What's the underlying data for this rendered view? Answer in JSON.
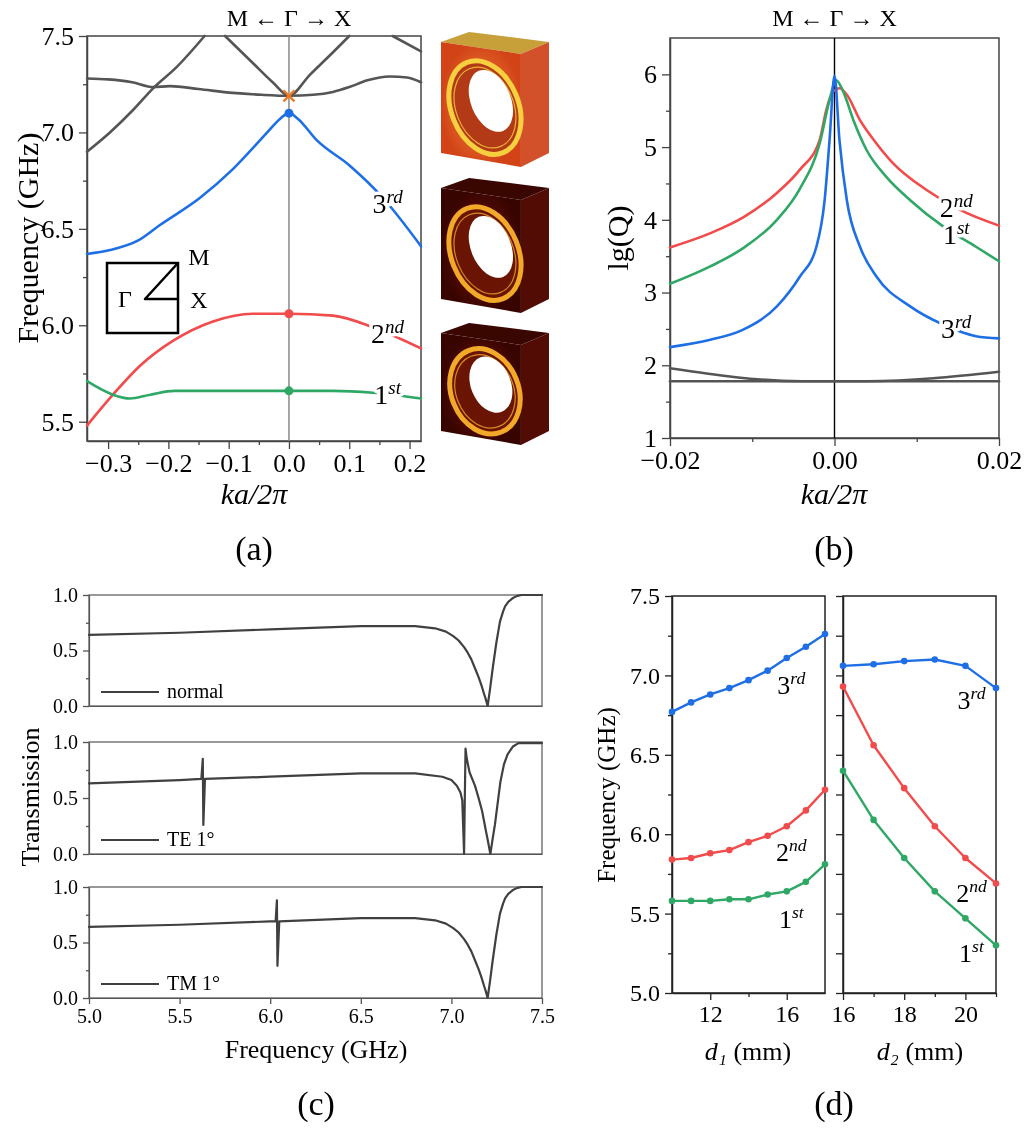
{
  "chart_data": [
    {
      "type": "line",
      "title": "M ← Γ → X",
      "xlabel": "ka/2π",
      "ylabel": "Frequency (GHz)",
      "xlim": [
        -0.335,
        0.219
      ],
      "ylim": [
        5.4,
        7.5
      ],
      "xticks": [
        {
          "value": -0.3,
          "label": "−0.3"
        },
        {
          "value": -0.25,
          "label": null
        },
        {
          "value": -0.2,
          "label": "−0.2"
        },
        {
          "value": -0.15,
          "label": null
        },
        {
          "value": -0.1,
          "label": "−0.1"
        },
        {
          "value": -0.05,
          "label": null
        },
        {
          "value": 0,
          "label": "0.0"
        },
        {
          "value": 0.05,
          "label": null
        },
        0.1,
        {
          "value": 0.15,
          "label": null
        },
        0.2
      ],
      "yticks": [
        5.5,
        {
          "value": 5.75,
          "label": null
        },
        {
          "value": 6,
          "label": "6.0"
        },
        {
          "value": 6.25,
          "label": null
        },
        6.5,
        {
          "value": 6.75,
          "label": null
        },
        {
          "value": 7,
          "label": "7.0"
        },
        {
          "value": 7.25,
          "label": null
        },
        7.5
      ],
      "ref_lines": [
        {
          "axis": "x",
          "value": 0,
          "color": "#808080"
        }
      ],
      "series": [
        {
          "color": "#555555",
          "x": [
            -0.335,
            -0.3,
            -0.26,
            -0.225,
            -0.197,
            -0.15,
            -0.093,
            -0.045,
            0,
            0.04,
            0.073,
            0.1,
            0.13,
            0.167,
            0.196,
            0.219
          ],
          "values": [
            7.28,
            7.275,
            7.26,
            7.235,
            7.24,
            7.225,
            7.205,
            7.195,
            7.19,
            7.195,
            7.21,
            7.235,
            7.27,
            7.29,
            7.285,
            7.26
          ]
        },
        {
          "color": "#555555",
          "x": [
            -0.335,
            -0.297,
            -0.259,
            -0.225,
            -0.186,
            -0.14,
            -0.123,
            -0.106,
            -0.06,
            -0.027,
            0,
            0.035,
            0.068,
            0.1,
            0.136,
            0.172,
            0.219
          ],
          "values": [
            6.9,
            7.0,
            7.115,
            7.23,
            7.34,
            7.5,
            null,
            7.5,
            7.36,
            7.26,
            7.19,
            7.3,
            7.4,
            7.5,
            null,
            7.5,
            7.42
          ]
        },
        {
          "name": "3$^{rd}$",
          "color": "#1e6fe6",
          "x": [
            -0.335,
            -0.297,
            -0.25,
            -0.214,
            -0.148,
            -0.093,
            -0.036,
            -0.015,
            0,
            0.015,
            0.046,
            0.1,
            0.156,
            0.219
          ],
          "values": [
            6.37,
            6.39,
            6.44,
            6.52,
            6.66,
            6.81,
            7.0,
            7.07,
            7.1,
            7.07,
            6.96,
            6.83,
            6.66,
            6.41
          ]
        },
        {
          "name": "2$^{nd}$",
          "color": "#f24b4b",
          "x": [
            -0.335,
            -0.292,
            -0.247,
            -0.192,
            -0.126,
            -0.06,
            0,
            0.073,
            0.139,
            0.219
          ],
          "values": [
            5.48,
            5.64,
            5.79,
            5.92,
            6.02,
            6.06,
            6.06,
            6.05,
            5.99,
            5.88
          ]
        },
        {
          "name": "1$^{st}$",
          "color": "#2fa866",
          "x": [
            -0.335,
            -0.292,
            -0.264,
            -0.23,
            -0.19,
            -0.1,
            0,
            0.073,
            0.139,
            0.219
          ],
          "values": [
            5.71,
            5.64,
            5.62,
            5.64,
            5.66,
            5.66,
            5.66,
            5.66,
            5.65,
            5.62
          ]
        },
        {
          "type": "scatter",
          "color": "#1e6fe6",
          "marker": "circle",
          "x": [
            0
          ],
          "values": [
            7.1
          ]
        },
        {
          "type": "scatter",
          "color": "#f24b4b",
          "marker": "circle",
          "x": [
            0
          ],
          "values": [
            6.06
          ]
        },
        {
          "type": "scatter",
          "color": "#2fa866",
          "marker": "circle",
          "x": [
            0
          ],
          "values": [
            5.66
          ]
        },
        {
          "type": "scatter",
          "color": "#f07820",
          "marker": "cross",
          "x": [
            0
          ],
          "values": [
            7.19
          ]
        }
      ],
      "annotations": [
        "Γ",
        "M",
        "X",
        "(a)"
      ]
    },
    {
      "type": "line",
      "title": "M ← Γ → X",
      "xlabel": "ka/2π",
      "ylabel": "lg(Q)",
      "xlim": [
        -0.02,
        0.02
      ],
      "ylim": [
        1,
        6.5
      ],
      "xticks": [
        {
          "value": -0.02,
          "label": "−0.02"
        },
        {
          "value": -0.01,
          "label": null
        },
        {
          "value": 0,
          "label": "0.00"
        },
        {
          "value": 0.01,
          "label": null
        },
        {
          "value": 0.02,
          "label": "0.02"
        }
      ],
      "yticks": [
        1,
        {
          "value": 1.5,
          "label": null
        },
        2,
        {
          "value": 2.5,
          "label": null
        },
        3,
        {
          "value": 3.5,
          "label": null
        },
        4,
        {
          "value": 4.5,
          "label": null
        },
        5,
        {
          "value": 5.5,
          "label": null
        },
        6
      ],
      "ref_lines": [
        {
          "axis": "x",
          "value": 0,
          "color": "#000000"
        }
      ],
      "series": [
        {
          "color": "#555555",
          "x": [
            -0.02,
            0.02
          ],
          "values": [
            1.78,
            1.78
          ]
        },
        {
          "color": "#555555",
          "x": [
            -0.02,
            -0.004,
            0.004,
            0.02
          ],
          "values": [
            1.96,
            1.78,
            1.78,
            1.91
          ]
        },
        {
          "name": "2$^{nd}$",
          "color": "#f24b4b",
          "x": [
            -0.02,
            -0.015,
            -0.011,
            -0.007,
            -0.0042,
            -0.0018,
            -0.001,
            -0.0002,
            0.0006,
            0.0015,
            0.0031,
            0.0051,
            0.0071,
            0.0112,
            0.0152,
            0.02
          ],
          "values": [
            3.62,
            3.82,
            4.04,
            4.37,
            4.69,
            5.1,
            5.51,
            5.76,
            5.81,
            5.72,
            5.37,
            5.05,
            4.78,
            4.41,
            4.14,
            3.92
          ]
        },
        {
          "name": "1$^{st}$",
          "color": "#2fa866",
          "x": [
            -0.02,
            -0.0151,
            -0.0111,
            -0.007,
            -0.0042,
            -0.0018,
            -0.0006,
            0.0002,
            0.001,
            0.0023,
            0.0039,
            0.0063,
            0.0092,
            0.0132,
            0.0172,
            0.02
          ],
          "values": [
            3.12,
            3.36,
            3.61,
            4.0,
            4.43,
            5.05,
            5.65,
            5.92,
            5.78,
            5.37,
            4.96,
            4.59,
            4.27,
            3.91,
            3.63,
            3.43
          ]
        },
        {
          "name": "3$^{rd}$",
          "color": "#1e6fe6",
          "x": [
            -0.02,
            -0.0151,
            -0.0111,
            -0.007,
            -0.0042,
            -0.0022,
            -0.0012,
            -0.0006,
            0,
            0.0006,
            0.0015,
            0.0031,
            0.0051,
            0.0092,
            0.0132,
            0.0172,
            0.02
          ],
          "values": [
            2.25,
            2.35,
            2.49,
            2.81,
            3.22,
            3.63,
            4.27,
            5.1,
            5.98,
            5.1,
            4.27,
            3.63,
            3.22,
            2.81,
            2.56,
            2.4,
            2.37
          ]
        }
      ],
      "annotations": [
        "(b)"
      ]
    },
    {
      "type": "line",
      "xlim": [
        5,
        7.5
      ],
      "ylim": [
        0,
        1
      ],
      "tick_labels": "y",
      "legend": "bottom left",
      "yticks": [
        {
          "value": 0,
          "label": "0.0"
        },
        {
          "value": 0.25,
          "label": null
        },
        0.5,
        {
          "value": 0.75,
          "label": null
        },
        {
          "value": 1,
          "label": "1.0"
        }
      ],
      "series": [
        {
          "name": "normal",
          "color": "#404040",
          "x": [
            5.0,
            5.5,
            6.0,
            6.5,
            6.8,
            6.91,
            6.97,
            7.01,
            7.04,
            7.07,
            7.09,
            7.11,
            7.13,
            7.15,
            7.165,
            7.18,
            7.19,
            7.2,
            7.213,
            7.228,
            7.248,
            7.268,
            7.285,
            7.297,
            7.315,
            7.337,
            7.36,
            7.386,
            7.5
          ],
          "values": [
            0.64,
            0.66,
            0.69,
            0.72,
            0.72,
            0.7,
            0.67,
            0.63,
            0.59,
            0.53,
            0.48,
            0.42,
            0.34,
            0.26,
            0.19,
            0.11,
            0.06,
            0.0,
            0.15,
            0.34,
            0.57,
            0.76,
            0.85,
            0.9,
            0.94,
            0.97,
            0.99,
            1.0,
            1.0
          ]
        }
      ]
    },
    {
      "type": "line",
      "ylabel": "Transmission",
      "xlim": [
        5,
        7.5
      ],
      "ylim": [
        0,
        1
      ],
      "tick_labels": "y",
      "legend": "bottom left",
      "yticks": [
        {
          "value": 0,
          "label": "0.0"
        },
        {
          "value": 0.25,
          "label": null
        },
        0.5,
        {
          "value": 0.75,
          "label": null
        },
        {
          "value": 1,
          "label": "1.0"
        }
      ],
      "series": [
        {
          "name": "TE 1°",
          "color": "#404040",
          "x": [
            5.0,
            5.5,
            5.62,
            5.628,
            5.631,
            5.64,
            6.0,
            6.5,
            6.8,
            6.95,
            7.0,
            7.03,
            7.05,
            7.06,
            7.07,
            7.074,
            7.078,
            7.085,
            7.1,
            7.13,
            7.15,
            7.17,
            7.19,
            7.2,
            7.215,
            7.228,
            7.24,
            7.255,
            7.27,
            7.29,
            7.31,
            7.34,
            7.37,
            7.5
          ],
          "values": [
            0.63,
            0.66,
            0.67,
            0.85,
            0.26,
            0.67,
            0.69,
            0.72,
            0.72,
            0.69,
            0.66,
            0.61,
            0.55,
            0.48,
            0.0,
            0.5,
            0.94,
            0.85,
            0.73,
            0.61,
            0.5,
            0.38,
            0.21,
            0.13,
            0.0,
            0.14,
            0.26,
            0.45,
            0.64,
            0.8,
            0.89,
            0.96,
            0.99,
            0.99
          ]
        }
      ]
    },
    {
      "type": "line",
      "xlabel": "Frequency (GHz)",
      "xlim": [
        5,
        7.5
      ],
      "ylim": [
        0,
        1
      ],
      "legend": "bottom left",
      "xticks": [
        {
          "value": 5,
          "label": "5.0"
        },
        5.5,
        {
          "value": 6,
          "label": "6.0"
        },
        6.5,
        {
          "value": 7,
          "label": "7.0"
        },
        7.5
      ],
      "yticks": [
        {
          "value": 0,
          "label": "0.0"
        },
        {
          "value": 0.25,
          "label": null
        },
        0.5,
        {
          "value": 0.75,
          "label": null
        },
        {
          "value": 1,
          "label": "1.0"
        }
      ],
      "series": [
        {
          "name": "TM 1°",
          "color": "#404040",
          "x": [
            5.0,
            5.5,
            6.0,
            6.03,
            6.037,
            6.04,
            6.05,
            6.5,
            6.8,
            6.91,
            6.97,
            7.01,
            7.04,
            7.07,
            7.09,
            7.11,
            7.13,
            7.15,
            7.165,
            7.18,
            7.19,
            7.2,
            7.213,
            7.228,
            7.248,
            7.268,
            7.285,
            7.297,
            7.315,
            7.337,
            7.36,
            7.386,
            7.5
          ],
          "values": [
            0.64,
            0.66,
            0.69,
            0.69,
            0.88,
            0.29,
            0.69,
            0.72,
            0.72,
            0.7,
            0.67,
            0.63,
            0.59,
            0.53,
            0.48,
            0.42,
            0.34,
            0.26,
            0.19,
            0.11,
            0.06,
            0.0,
            0.15,
            0.34,
            0.57,
            0.76,
            0.85,
            0.9,
            0.94,
            0.97,
            0.99,
            1.0,
            1.0
          ]
        }
      ],
      "annotations": [
        "(c)"
      ]
    },
    {
      "type": "line",
      "xlabel": "d₁ (mm)",
      "ylabel": "Frequency (GHz)",
      "x": [
        10,
        11,
        12,
        13,
        14,
        15,
        16,
        17,
        18
      ],
      "xlim": [
        10,
        18
      ],
      "ylim": [
        5,
        7.5
      ],
      "marker": "circle",
      "xticks": [
        12,
        {
          "value": 14,
          "label": null
        },
        16
      ],
      "yticks": [
        {
          "value": 5,
          "label": "5.0"
        },
        {
          "value": 5.25,
          "label": null
        },
        5.5,
        {
          "value": 5.75,
          "label": null
        },
        {
          "value": 6,
          "label": "6.0"
        },
        {
          "value": 6.25,
          "label": null
        },
        6.5,
        {
          "value": 6.75,
          "label": null
        },
        {
          "value": 7,
          "label": "7.0"
        },
        {
          "value": 7.25,
          "label": null
        },
        7.5
      ],
      "series": [
        {
          "name": "3$^{rd}$",
          "color": "#1e6fe6",
          "values": [
            6.77,
            6.83,
            6.88,
            6.92,
            6.97,
            7.03,
            7.11,
            7.18,
            7.26
          ]
        },
        {
          "name": "2$^{nd}$",
          "color": "#f24b4b",
          "values": [
            5.84,
            5.85,
            5.88,
            5.9,
            5.95,
            5.99,
            6.05,
            6.15,
            6.28
          ]
        },
        {
          "name": "1$^{st}$",
          "color": "#2fa866",
          "values": [
            5.58,
            5.58,
            5.58,
            5.59,
            5.59,
            5.62,
            5.64,
            5.7,
            5.81
          ]
        }
      ],
      "annotations": [
        "(d)"
      ]
    },
    {
      "type": "line",
      "xlabel": "d₂ (mm)",
      "x": [
        16,
        17,
        18,
        19,
        20,
        21
      ],
      "xlim": [
        16,
        21
      ],
      "ylim": [
        5,
        7.5
      ],
      "marker": "circle",
      "tick_labels": "x",
      "xticks": [
        16,
        {
          "value": 17,
          "label": null
        },
        18,
        {
          "value": 19,
          "label": null
        },
        20,
        {
          "value": 21,
          "label": null
        }
      ],
      "yticks": [
        5,
        5.25,
        5.5,
        5.75,
        6,
        6.25,
        6.5,
        6.75,
        7,
        7.25,
        7.5
      ],
      "series": [
        {
          "name": "3$^{rd}$",
          "color": "#1e6fe6",
          "values": [
            7.06,
            7.07,
            7.09,
            7.1,
            7.06,
            6.92
          ]
        },
        {
          "name": "2$^{nd}$",
          "color": "#f24b4b",
          "values": [
            6.93,
            6.56,
            6.29,
            6.05,
            5.85,
            5.69
          ]
        },
        {
          "name": "1$^{st}$",
          "color": "#2fa866",
          "values": [
            6.4,
            6.09,
            5.85,
            5.64,
            5.47,
            5.3
          ]
        }
      ]
    }
  ]
}
